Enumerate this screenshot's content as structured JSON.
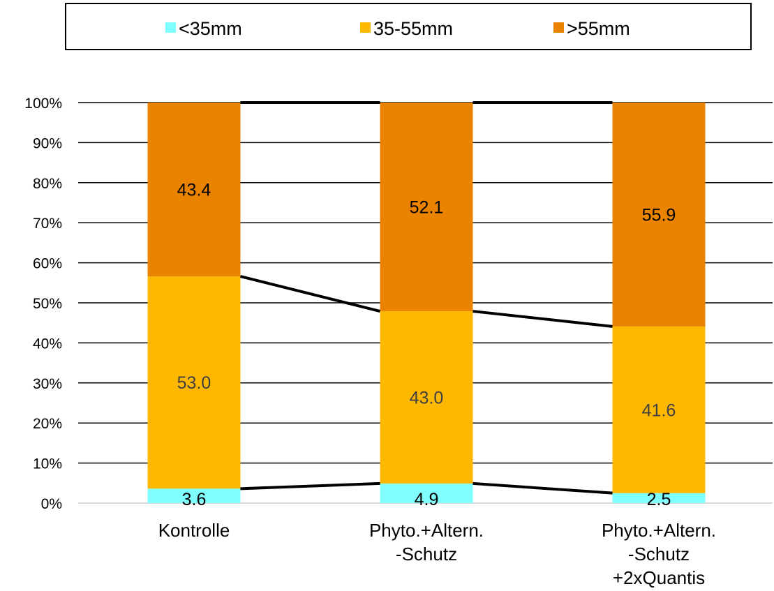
{
  "chart_data": {
    "type": "bar",
    "stacked": true,
    "percent_stacked": true,
    "categories": [
      [
        "Kontrolle"
      ],
      [
        "Phyto.+Altern.",
        "-Schutz"
      ],
      [
        "Phyto.+Altern.",
        "-Schutz",
        "+2xQuantis"
      ]
    ],
    "series": [
      {
        "name": "<35mm",
        "color": "#80FFFF",
        "values": [
          3.6,
          4.9,
          2.5
        ],
        "label_color": "#000000"
      },
      {
        "name": "35-55mm",
        "color": "#FFB800",
        "values": [
          53.0,
          43.0,
          41.6
        ],
        "label_color": "#404040"
      },
      {
        "name": ">55mm",
        "color": "#EA8300",
        "values": [
          43.4,
          52.1,
          55.9
        ],
        "label_color": "#000000"
      }
    ],
    "ylim": [
      0,
      100
    ],
    "yticks": [
      "0%",
      "10%",
      "20%",
      "30%",
      "40%",
      "50%",
      "60%",
      "70%",
      "80%",
      "90%",
      "100%"
    ],
    "grid": true,
    "legend_position": "top",
    "connector_lines": true,
    "title": "",
    "xlabel": "",
    "ylabel": ""
  }
}
